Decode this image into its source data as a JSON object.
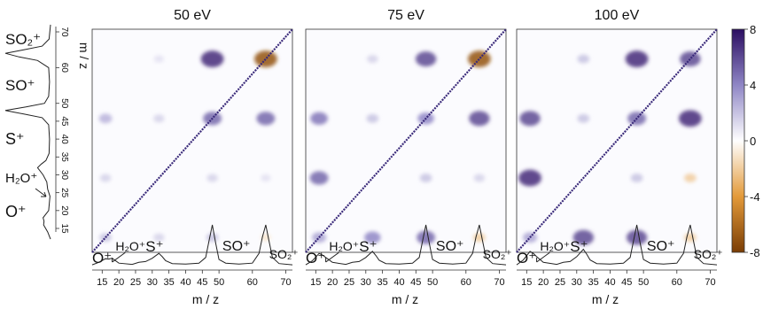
{
  "figure": {
    "axis_label": "m / z",
    "colorbar": {
      "ticks": [
        "8",
        "4",
        "0",
        "-4",
        "-8"
      ],
      "colors": {
        "negative": "#7a3d05",
        "mid_negative": "#e39a3a",
        "zero": "#ffffff",
        "mid_positive": "#8f86c5",
        "positive": "#2b0d61"
      }
    },
    "left_axis_ticks": [
      "70",
      "60",
      "50",
      "45",
      "40",
      "35",
      "30",
      "25",
      "20",
      "15"
    ],
    "bottom_axis_ticks": [
      "15",
      "20",
      "25",
      "30",
      "35",
      "40",
      "45",
      "50",
      "60",
      "70"
    ],
    "ion_labels": {
      "o": "O⁺",
      "h2o": "H₂O⁺",
      "s": "S⁺",
      "so": "SO⁺",
      "so2": "SO₂⁺"
    }
  },
  "chart_data": [
    {
      "type": "heatmap",
      "title": "50 eV",
      "x_range": [
        12,
        72
      ],
      "y_range": [
        12,
        72
      ],
      "zlim": [
        -8,
        8
      ],
      "diagonal": true,
      "blobs": [
        {
          "x": 16,
          "y": 16,
          "value": 2
        },
        {
          "x": 32,
          "y": 16,
          "value": 1.5
        },
        {
          "x": 48,
          "y": 16,
          "value": 2
        },
        {
          "x": 64,
          "y": 16,
          "value": -1
        },
        {
          "x": 16,
          "y": 32,
          "value": 1.5
        },
        {
          "x": 48,
          "y": 32,
          "value": 1.5
        },
        {
          "x": 64,
          "y": 32,
          "value": 1
        },
        {
          "x": 16,
          "y": 48,
          "value": 2.5
        },
        {
          "x": 32,
          "y": 48,
          "value": 1.5
        },
        {
          "x": 48,
          "y": 48,
          "value": 5
        },
        {
          "x": 64,
          "y": 48,
          "value": 5
        },
        {
          "x": 32,
          "y": 64,
          "value": 1
        },
        {
          "x": 48,
          "y": 64,
          "value": 7
        },
        {
          "x": 64,
          "y": 64,
          "value": -7
        }
      ],
      "spectrum": {
        "x": [
          12,
          14,
          16,
          17,
          18,
          20,
          24,
          26,
          28,
          30,
          32,
          33,
          34,
          36,
          40,
          44,
          46,
          47,
          48,
          49,
          50,
          52,
          56,
          60,
          62,
          63,
          64,
          65,
          66,
          68,
          72
        ],
        "y": [
          0.02,
          0.08,
          0.17,
          0.16,
          0.18,
          0.06,
          0.03,
          0.08,
          0.1,
          0.18,
          0.3,
          0.22,
          0.12,
          0.05,
          0.04,
          0.06,
          0.2,
          0.6,
          1.0,
          0.55,
          0.15,
          0.06,
          0.04,
          0.06,
          0.3,
          0.7,
          1.0,
          0.6,
          0.2,
          0.05,
          0.02
        ]
      }
    },
    {
      "type": "heatmap",
      "title": "75 eV",
      "x_range": [
        12,
        72
      ],
      "y_range": [
        12,
        72
      ],
      "zlim": [
        -8,
        8
      ],
      "diagonal": true,
      "blobs": [
        {
          "x": 16,
          "y": 16,
          "value": 3
        },
        {
          "x": 32,
          "y": 16,
          "value": 4
        },
        {
          "x": 48,
          "y": 16,
          "value": 5
        },
        {
          "x": 64,
          "y": 16,
          "value": -2
        },
        {
          "x": 16,
          "y": 32,
          "value": 5
        },
        {
          "x": 48,
          "y": 32,
          "value": 2
        },
        {
          "x": 64,
          "y": 32,
          "value": 1.5
        },
        {
          "x": 16,
          "y": 48,
          "value": 4.5
        },
        {
          "x": 32,
          "y": 48,
          "value": 2
        },
        {
          "x": 48,
          "y": 48,
          "value": 4
        },
        {
          "x": 64,
          "y": 48,
          "value": 6
        },
        {
          "x": 32,
          "y": 64,
          "value": 1.5
        },
        {
          "x": 48,
          "y": 64,
          "value": 6
        },
        {
          "x": 64,
          "y": 64,
          "value": -7
        }
      ],
      "spectrum": {
        "x": [
          12,
          14,
          16,
          17,
          18,
          20,
          24,
          26,
          28,
          30,
          32,
          33,
          34,
          36,
          40,
          44,
          46,
          47,
          48,
          49,
          50,
          52,
          56,
          60,
          62,
          63,
          64,
          65,
          66,
          68,
          72
        ],
        "y": [
          0.02,
          0.12,
          0.3,
          0.26,
          0.2,
          0.08,
          0.03,
          0.08,
          0.1,
          0.2,
          0.35,
          0.25,
          0.13,
          0.05,
          0.04,
          0.06,
          0.2,
          0.6,
          1.0,
          0.55,
          0.15,
          0.06,
          0.04,
          0.06,
          0.3,
          0.7,
          1.0,
          0.6,
          0.2,
          0.05,
          0.02
        ]
      }
    },
    {
      "type": "heatmap",
      "title": "100 eV",
      "x_range": [
        12,
        72
      ],
      "y_range": [
        12,
        72
      ],
      "zlim": [
        -8,
        8
      ],
      "diagonal": true,
      "blobs": [
        {
          "x": 16,
          "y": 16,
          "value": 3
        },
        {
          "x": 32,
          "y": 16,
          "value": 6
        },
        {
          "x": 48,
          "y": 16,
          "value": 6
        },
        {
          "x": 64,
          "y": 16,
          "value": -2
        },
        {
          "x": 16,
          "y": 32,
          "value": 7
        },
        {
          "x": 48,
          "y": 32,
          "value": 2
        },
        {
          "x": 64,
          "y": 32,
          "value": -2
        },
        {
          "x": 16,
          "y": 48,
          "value": 6
        },
        {
          "x": 32,
          "y": 48,
          "value": 2
        },
        {
          "x": 48,
          "y": 48,
          "value": 5
        },
        {
          "x": 64,
          "y": 48,
          "value": 7
        },
        {
          "x": 32,
          "y": 64,
          "value": 2
        },
        {
          "x": 48,
          "y": 64,
          "value": 7
        },
        {
          "x": 64,
          "y": 64,
          "value": 6
        }
      ],
      "spectrum": {
        "x": [
          12,
          14,
          16,
          17,
          18,
          20,
          24,
          26,
          28,
          30,
          32,
          33,
          34,
          36,
          40,
          44,
          46,
          47,
          48,
          49,
          50,
          52,
          56,
          60,
          62,
          63,
          64,
          65,
          66,
          68,
          72
        ],
        "y": [
          0.02,
          0.14,
          0.35,
          0.3,
          0.22,
          0.08,
          0.03,
          0.08,
          0.1,
          0.22,
          0.4,
          0.28,
          0.14,
          0.05,
          0.04,
          0.06,
          0.2,
          0.6,
          1.0,
          0.55,
          0.15,
          0.06,
          0.04,
          0.06,
          0.3,
          0.7,
          1.0,
          0.6,
          0.2,
          0.05,
          0.02
        ]
      }
    }
  ]
}
